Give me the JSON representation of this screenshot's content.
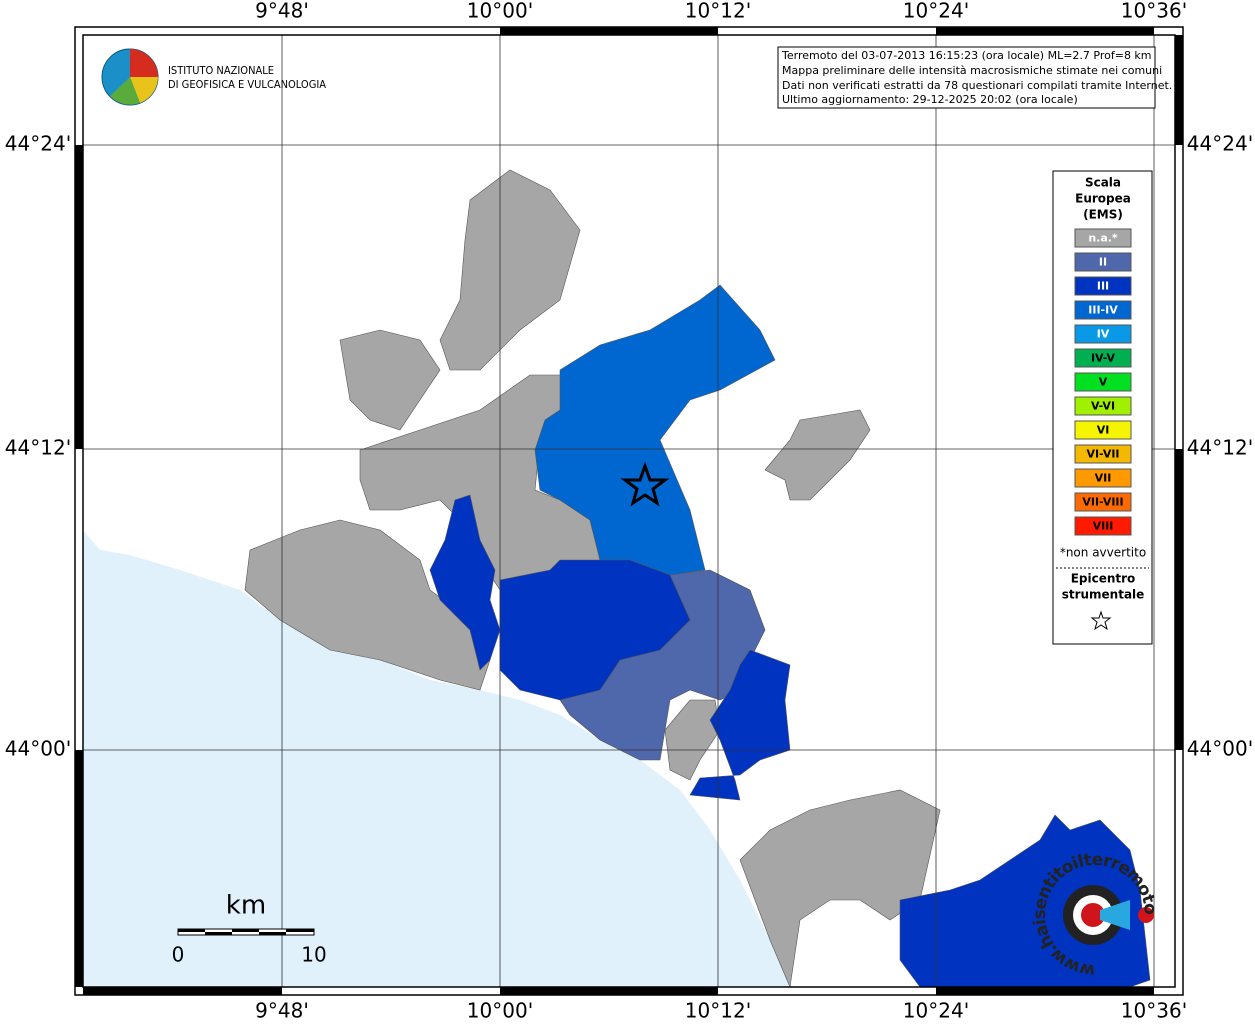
{
  "header": {
    "institute": [
      "ISTITUTO NAZIONALE",
      "DI GEOFISICA E VULCANOLOGIA"
    ]
  },
  "info": [
    "Terremoto del 03-07-2013 16:15:23 (ora locale) ML=2.7 Prof=8 km",
    "Mappa preliminare delle intensità macrosismiche stimate nei comuni",
    "Dati non verificati estratti da 78 questionari compilati tramite Internet.",
    "Ultimo aggiornamento: 29-12-2025 20:02 (ora locale)"
  ],
  "axes": {
    "lon_labels": [
      "9°48'",
      "10°00'",
      "10°12'",
      "10°24'",
      "10°36'"
    ],
    "lat_labels": [
      "44°24'",
      "44°12'",
      "44°00'"
    ]
  },
  "legend": {
    "title": [
      "Scala",
      "Europea",
      "(EMS)"
    ],
    "items": [
      {
        "label": "n.a.*",
        "color": "#a6a6a6"
      },
      {
        "label": "II",
        "color": "#4f67ab"
      },
      {
        "label": "III",
        "color": "#0033c0"
      },
      {
        "label": "III-IV",
        "color": "#0066d0"
      },
      {
        "label": "IV",
        "color": "#0a99e6"
      },
      {
        "label": "IV-V",
        "color": "#00b050"
      },
      {
        "label": "V",
        "color": "#00e020"
      },
      {
        "label": "V-VI",
        "color": "#a0f000"
      },
      {
        "label": "VI",
        "color": "#f5f500"
      },
      {
        "label": "VI-VII",
        "color": "#f5b800"
      },
      {
        "label": "VII",
        "color": "#ff9900"
      },
      {
        "label": "VII-VIII",
        "color": "#ff6a00"
      },
      {
        "label": "VIII",
        "color": "#ff1a00"
      }
    ],
    "note": "*non avvertito",
    "epicenter": [
      "Epicentro",
      "strumentale"
    ]
  },
  "scale_bar": {
    "unit": "km",
    "labels": [
      "0",
      "10"
    ]
  },
  "watermark": "www.haisentitoilterremoto.it"
}
